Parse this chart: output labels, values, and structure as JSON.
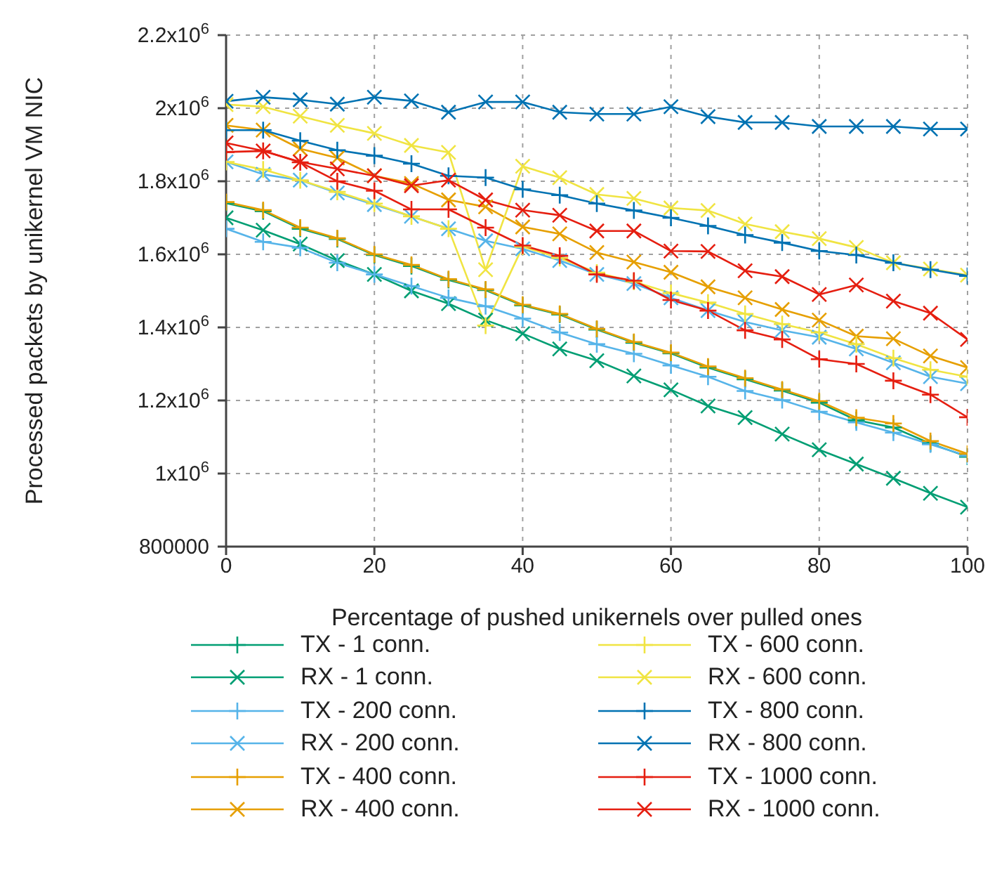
{
  "chart_data": {
    "type": "line",
    "xlabel": "Percentage of pushed unikernels over pulled ones",
    "ylabel": "Processed packets by unikernel VM NIC",
    "x": [
      0,
      5,
      10,
      15,
      20,
      25,
      30,
      35,
      40,
      45,
      50,
      55,
      60,
      65,
      70,
      75,
      80,
      85,
      90,
      95,
      100
    ],
    "xlim": [
      0,
      100
    ],
    "xticks": [
      0,
      20,
      40,
      60,
      80,
      100
    ],
    "ylim": [
      800000,
      2200000
    ],
    "yticks": [
      {
        "value": 800000,
        "label": "800000"
      },
      {
        "value": 1000000,
        "label": "1x10$^{6}$"
      },
      {
        "value": 1200000,
        "label": "1.2x10$^{6}$"
      },
      {
        "value": 1400000,
        "label": "1.4x10$^{6}$"
      },
      {
        "value": 1600000,
        "label": "1.6x10$^{6}$"
      },
      {
        "value": 1800000,
        "label": "1.8x10$^{6}$"
      },
      {
        "value": 2000000,
        "label": "2x10$^{6}$"
      },
      {
        "value": 2200000,
        "label": "2.2x10$^{6}$"
      }
    ],
    "grid": true,
    "legend": "bottom",
    "line_style": "solid",
    "series": [
      {
        "name": "TX - 1 conn.",
        "color": "#009e73",
        "marker": "plus",
        "values": [
          1740000,
          1718000,
          1670000,
          1642000,
          1598000,
          1568000,
          1530000,
          1502000,
          1460000,
          1435000,
          1394000,
          1358000,
          1329000,
          1290000,
          1258000,
          1227000,
          1194000,
          1146000,
          1126000,
          1082000,
          1046000
        ]
      },
      {
        "name": "RX - 1 conn.",
        "color": "#009e73",
        "marker": "cross",
        "values": [
          1700000,
          1666000,
          1628000,
          1583000,
          1545000,
          1500000,
          1465000,
          1420000,
          1383000,
          1341000,
          1309000,
          1267000,
          1229000,
          1185000,
          1153000,
          1108000,
          1065000,
          1026000,
          987000,
          946000,
          908000
        ]
      },
      {
        "name": "TX - 200 conn.",
        "color": "#56b4e9",
        "marker": "plus",
        "values": [
          1670000,
          1634000,
          1618000,
          1577000,
          1545000,
          1513000,
          1481000,
          1458000,
          1424000,
          1386000,
          1354000,
          1328000,
          1296000,
          1265000,
          1226000,
          1201000,
          1169000,
          1140000,
          1112000,
          1080000,
          1048000
        ]
      },
      {
        "name": "RX - 200 conn.",
        "color": "#56b4e9",
        "marker": "cross",
        "values": [
          1853000,
          1819000,
          1803000,
          1768000,
          1736000,
          1704000,
          1670000,
          1637000,
          1615000,
          1583000,
          1545000,
          1520000,
          1481000,
          1446000,
          1415000,
          1392000,
          1373000,
          1341000,
          1303000,
          1265000,
          1246000
        ]
      },
      {
        "name": "TX - 400 conn.",
        "color": "#e69f00",
        "marker": "plus",
        "values": [
          1743000,
          1721000,
          1673000,
          1644000,
          1600000,
          1571000,
          1532000,
          1504000,
          1462000,
          1437000,
          1396000,
          1360000,
          1331000,
          1293000,
          1261000,
          1230000,
          1198000,
          1153000,
          1137000,
          1089000,
          1054000
        ]
      },
      {
        "name": "RX - 400 conn.",
        "color": "#e69f00",
        "marker": "cross",
        "values": [
          1953000,
          1940000,
          1889000,
          1864000,
          1815000,
          1794000,
          1749000,
          1730000,
          1675000,
          1656000,
          1605000,
          1579000,
          1551000,
          1511000,
          1481000,
          1449000,
          1420000,
          1376000,
          1369000,
          1322000,
          1290000
        ]
      },
      {
        "name": "TX - 600 conn.",
        "color": "#f0e442",
        "marker": "plus",
        "values": [
          1853000,
          1832000,
          1803000,
          1771000,
          1739000,
          1704000,
          1670000,
          1405000,
          1621000,
          1590000,
          1550000,
          1525000,
          1494000,
          1468000,
          1437000,
          1409000,
          1386000,
          1354000,
          1316000,
          1284000,
          1265000
        ]
      },
      {
        "name": "RX - 600 conn.",
        "color": "#f0e442",
        "marker": "cross",
        "values": [
          2010000,
          2004000,
          1978000,
          1953000,
          1931000,
          1898000,
          1879000,
          1558000,
          1841000,
          1810000,
          1764000,
          1753000,
          1727000,
          1720000,
          1683000,
          1662000,
          1643000,
          1619000,
          1577000,
          1560000,
          1543000
        ]
      },
      {
        "name": "TX - 800 conn.",
        "color": "#0072b2",
        "marker": "plus",
        "values": [
          1940000,
          1940000,
          1911000,
          1885000,
          1870000,
          1848000,
          1815000,
          1810000,
          1778000,
          1762000,
          1739000,
          1720000,
          1700000,
          1678000,
          1653000,
          1632000,
          1609000,
          1598000,
          1577000,
          1558000,
          1541000
        ]
      },
      {
        "name": "RX - 800 conn.",
        "color": "#0072b2",
        "marker": "cross",
        "values": [
          2019000,
          2030000,
          2023000,
          2011000,
          2030000,
          2020000,
          1989000,
          2017000,
          2017000,
          1989000,
          1984000,
          1984000,
          2004000,
          1977000,
          1961000,
          1961000,
          1950000,
          1950000,
          1950000,
          1943000,
          1943000
        ]
      },
      {
        "name": "TX - 1000 conn.",
        "color": "#e51e10",
        "marker": "plus",
        "values": [
          1880000,
          1883000,
          1852000,
          1800000,
          1774000,
          1723000,
          1723000,
          1673000,
          1624000,
          1596000,
          1545000,
          1528000,
          1475000,
          1446000,
          1392000,
          1367000,
          1313000,
          1300000,
          1254000,
          1216000,
          1154000
        ]
      },
      {
        "name": "RX - 1000 conn.",
        "color": "#e51e10",
        "marker": "cross",
        "values": [
          1905000,
          1883000,
          1853000,
          1834000,
          1815000,
          1788000,
          1803000,
          1749000,
          1721000,
          1707000,
          1664000,
          1664000,
          1609000,
          1608000,
          1555000,
          1539000,
          1490000,
          1516000,
          1472000,
          1439000,
          1367000
        ]
      }
    ]
  }
}
